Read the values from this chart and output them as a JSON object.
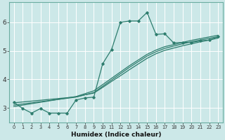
{
  "xlabel": "Humidex (Indice chaleur)",
  "ylabel": "",
  "bg_color": "#cce8e8",
  "line_color": "#2e7d6e",
  "xlim": [
    -0.5,
    23.5
  ],
  "ylim": [
    2.5,
    6.7
  ],
  "yticks": [
    3,
    4,
    5,
    6
  ],
  "xticks": [
    0,
    1,
    2,
    3,
    4,
    5,
    6,
    7,
    8,
    9,
    10,
    11,
    12,
    13,
    14,
    15,
    16,
    17,
    18,
    19,
    20,
    21,
    22,
    23
  ],
  "series_zigzag": [
    3.2,
    2.98,
    2.82,
    2.98,
    2.82,
    2.82,
    2.82,
    3.28,
    3.35,
    3.38,
    4.55,
    5.05,
    6.0,
    6.05,
    6.05,
    6.35,
    5.58,
    5.6,
    5.28,
    5.3,
    5.3,
    5.35,
    5.38,
    5.5
  ],
  "series_linear": [
    [
      3.18,
      3.21,
      3.24,
      3.27,
      3.3,
      3.33,
      3.36,
      3.39,
      3.46,
      3.52,
      3.72,
      3.93,
      4.13,
      4.34,
      4.54,
      4.74,
      4.9,
      5.02,
      5.1,
      5.18,
      5.25,
      5.32,
      5.38,
      5.45
    ],
    [
      3.1,
      3.14,
      3.18,
      3.22,
      3.26,
      3.3,
      3.34,
      3.38,
      3.46,
      3.54,
      3.76,
      3.98,
      4.2,
      4.42,
      4.62,
      4.82,
      4.97,
      5.09,
      5.17,
      5.25,
      5.32,
      5.38,
      5.44,
      5.5
    ],
    [
      3.05,
      3.1,
      3.15,
      3.2,
      3.25,
      3.3,
      3.35,
      3.4,
      3.5,
      3.6,
      3.82,
      4.04,
      4.26,
      4.48,
      4.68,
      4.88,
      5.03,
      5.15,
      5.22,
      5.3,
      5.37,
      5.43,
      5.49,
      5.55
    ]
  ]
}
